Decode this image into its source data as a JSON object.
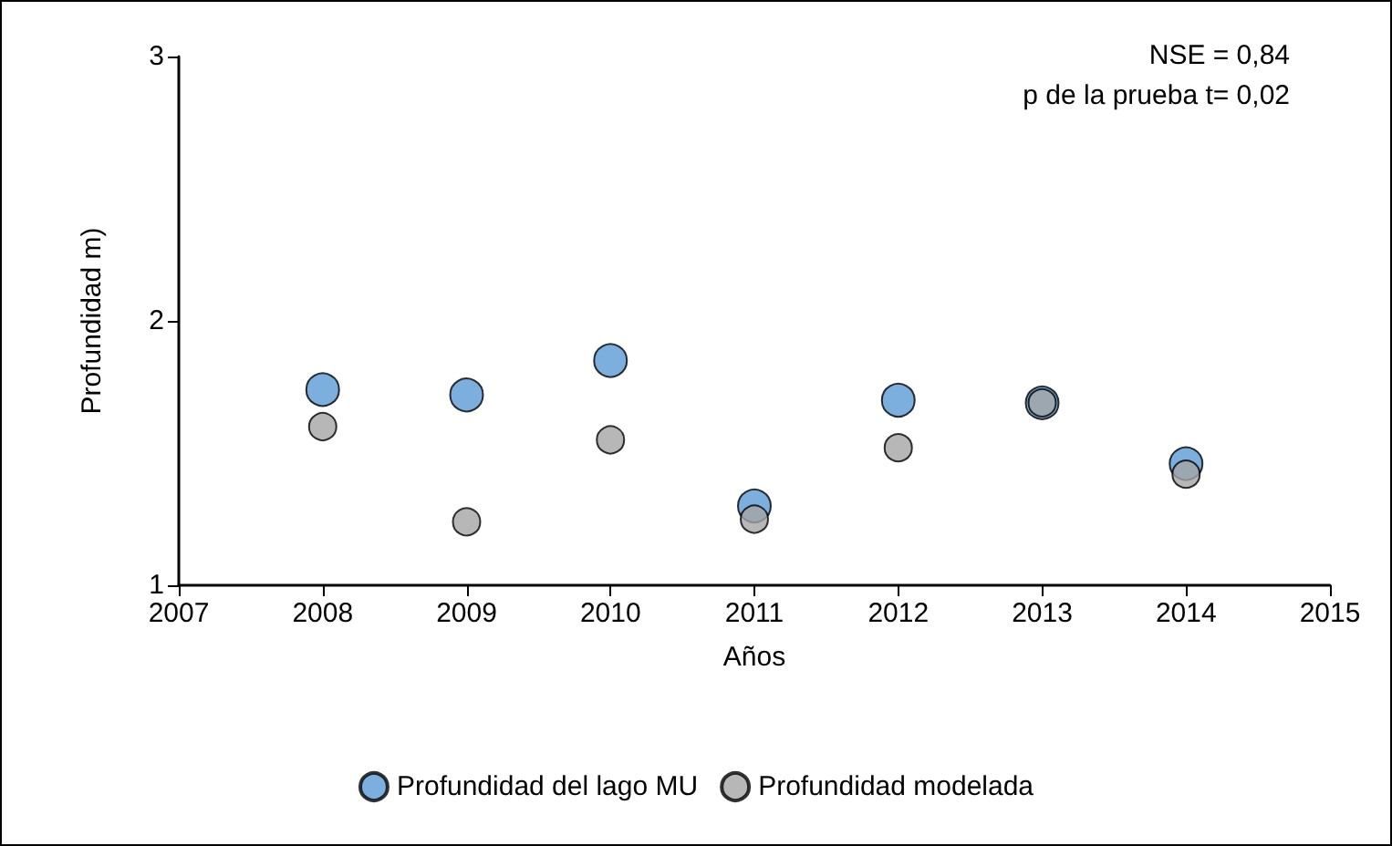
{
  "chart_data": {
    "type": "scatter",
    "xlabel": "Años",
    "ylabel": "Profundidad m)",
    "x": [
      2008,
      2009,
      2010,
      2011,
      2012,
      2013,
      2014
    ],
    "series": [
      {
        "name": "Profundidad del lago MU",
        "color": "#5b9bd5",
        "values": [
          1.74,
          1.72,
          1.85,
          1.3,
          1.7,
          1.69,
          1.46
        ]
      },
      {
        "name": "Profundidad modelada",
        "color": "#a5a5a5",
        "values": [
          1.6,
          1.24,
          1.55,
          1.25,
          1.52,
          1.69,
          1.42
        ]
      }
    ],
    "xlim": [
      2007,
      2015
    ],
    "xticks": [
      2007,
      2008,
      2009,
      2010,
      2011,
      2012,
      2013,
      2014,
      2015
    ],
    "ylim": [
      1,
      3
    ],
    "yticks": [
      1,
      2,
      3
    ],
    "annotations": [
      "NSE = 0,84",
      "p de la prueba t= 0,02"
    ],
    "grid": false,
    "legend": "bottom",
    "marker": "circle"
  }
}
